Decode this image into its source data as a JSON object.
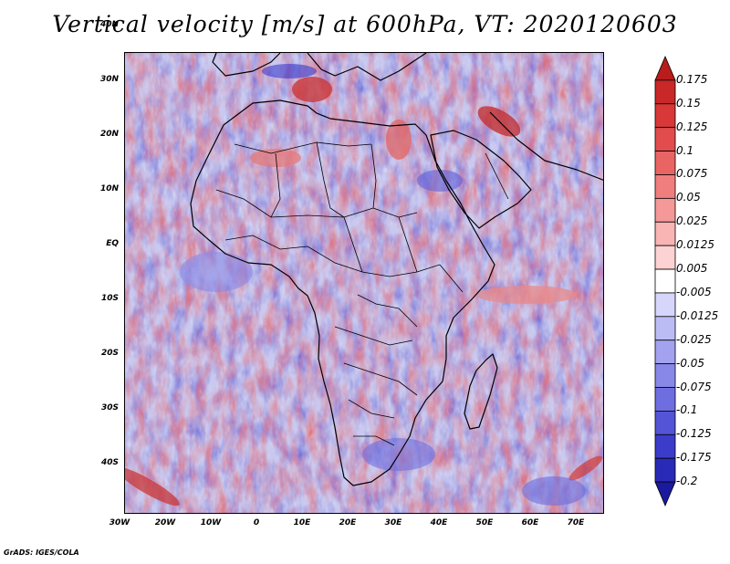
{
  "title": "Vertical velocity [m/s] at 600hPa, VT: 2020120603",
  "credit": "GrADS: IGES/COLA",
  "chart_data": {
    "type": "heatmap",
    "variable": "Vertical velocity",
    "units": "m/s",
    "level": "600hPa",
    "valid_time": "2020120603",
    "xlim": [
      -30,
      75
    ],
    "ylim": [
      -40,
      45
    ],
    "x_ticks": [
      {
        "value": -30,
        "label": "30W"
      },
      {
        "value": -20,
        "label": "20W"
      },
      {
        "value": -10,
        "label": "10W"
      },
      {
        "value": 0,
        "label": "0"
      },
      {
        "value": 10,
        "label": "10E"
      },
      {
        "value": 20,
        "label": "20E"
      },
      {
        "value": 30,
        "label": "30E"
      },
      {
        "value": 40,
        "label": "40E"
      },
      {
        "value": 50,
        "label": "50E"
      },
      {
        "value": 60,
        "label": "60E"
      },
      {
        "value": 70,
        "label": "70E"
      }
    ],
    "y_ticks": [
      {
        "value": 40,
        "label": "40N"
      },
      {
        "value": 30,
        "label": "30N"
      },
      {
        "value": 20,
        "label": "20N"
      },
      {
        "value": 10,
        "label": "10N"
      },
      {
        "value": 0,
        "label": "EQ"
      },
      {
        "value": -10,
        "label": "10S"
      },
      {
        "value": -20,
        "label": "20S"
      },
      {
        "value": -30,
        "label": "30S"
      },
      {
        "value": -40,
        "label": "40S"
      }
    ],
    "colorbar": {
      "levels": [
        "0.175",
        "0.15",
        "0.125",
        "0.1",
        "0.075",
        "0.05",
        "0.025",
        "0.0125",
        "0.005",
        "-0.005",
        "-0.0125",
        "-0.025",
        "-0.05",
        "-0.075",
        "-0.1",
        "-0.125",
        "-0.175",
        "-0.2"
      ],
      "colors": [
        "#b81c1c",
        "#c92828",
        "#d83838",
        "#e24c4c",
        "#ea6464",
        "#f07e7e",
        "#f59898",
        "#f9b4b4",
        "#fcd2d2",
        "#ffffff",
        "#d6d6fa",
        "#bcbcf5",
        "#a2a2ef",
        "#8888e9",
        "#6e6ee1",
        "#5454d6",
        "#3c3ccb",
        "#2a2ab8",
        "#1a1a9e"
      ],
      "shape": "triangular-ends"
    }
  }
}
